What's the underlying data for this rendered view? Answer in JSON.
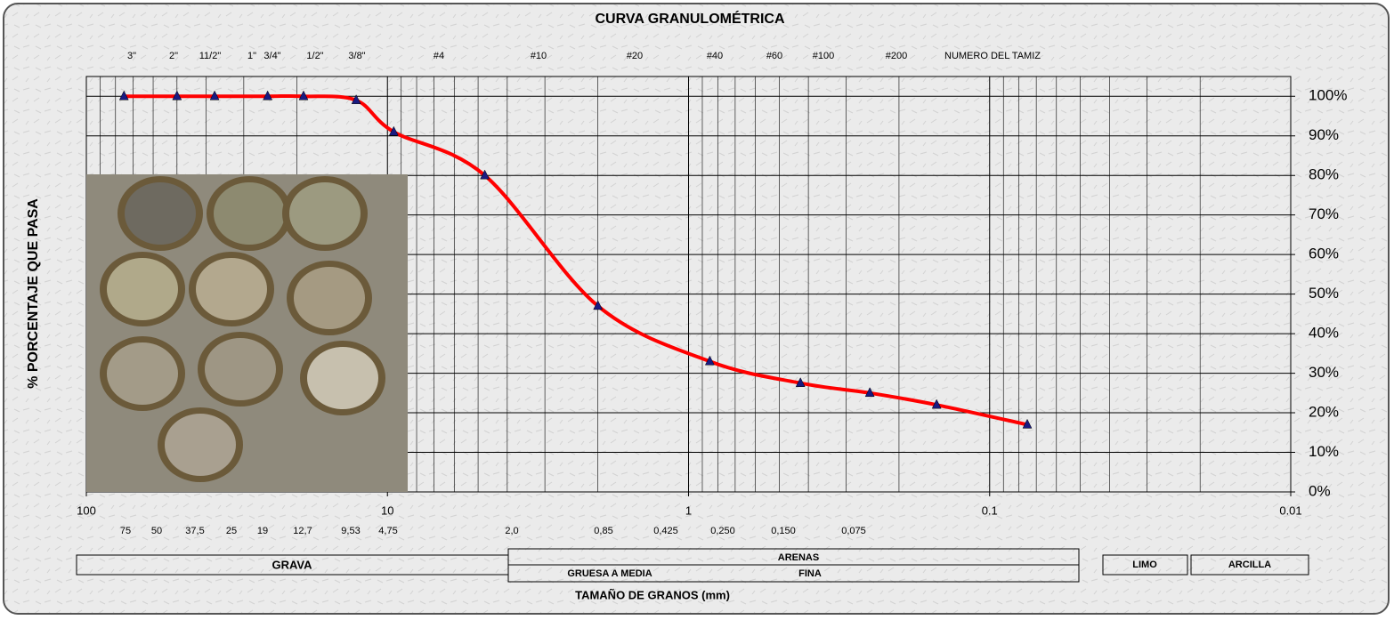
{
  "chart_data": {
    "type": "line",
    "title": "CURVA GRANULOMÉTRICA",
    "x_label": "TAMAÑO DE GRANOS (mm)",
    "y_label": "% PORCENTAJE QUE PASA",
    "sieve_header": "NUMERO DEL TAMIZ",
    "sieve_names": [
      "3\"",
      "2\"",
      "11/2\"",
      "1\"",
      "3/4\"",
      "1/2\"",
      "3/8\"",
      "#4",
      "#10",
      "#20",
      "#40",
      "#60",
      "#100",
      "#200"
    ],
    "sieve_sizes": [
      "75",
      "50",
      "37,5",
      "25",
      "19",
      "12,7",
      "9,53",
      "4,75",
      "2,0",
      "0,85",
      "0,425",
      "0,250",
      "0,150",
      "0,075"
    ],
    "x": [
      75,
      50,
      37.5,
      25,
      19,
      12.7,
      9.53,
      4.75,
      2.0,
      0.85,
      0.425,
      0.25,
      0.15,
      0.075
    ],
    "series": [
      {
        "color": "#ff0000",
        "marker_color": "#1a1a80",
        "values": [
          100,
          100,
          100,
          100,
          100,
          99,
          91,
          80,
          47,
          33,
          27.5,
          25,
          22,
          17
        ]
      }
    ],
    "x_log": true,
    "xlim": [
      100,
      0.01
    ],
    "xticks": [
      100,
      10,
      1,
      0.1,
      0.01
    ],
    "ylim": [
      0,
      105
    ],
    "yticks": [
      {
        "value": 0,
        "label": "0%"
      },
      {
        "value": 10,
        "label": "10%"
      },
      {
        "value": 20,
        "label": "20%"
      },
      {
        "value": 30,
        "label": "30%"
      },
      {
        "value": 40,
        "label": "40%"
      },
      {
        "value": 50,
        "label": "50%"
      },
      {
        "value": 60,
        "label": "60%"
      },
      {
        "value": 70,
        "label": "70%"
      },
      {
        "value": 80,
        "label": "80%"
      },
      {
        "value": 90,
        "label": "90%"
      },
      {
        "value": 100,
        "label": "100%"
      }
    ],
    "grid": true,
    "soil_classes": {
      "gravel": "GRAVA",
      "sand": "ARENAS",
      "coarse_medium": "GRUESA A MEDIA",
      "fine": "FINA",
      "silt": "LIMO",
      "clay": "ARCILLA"
    }
  }
}
